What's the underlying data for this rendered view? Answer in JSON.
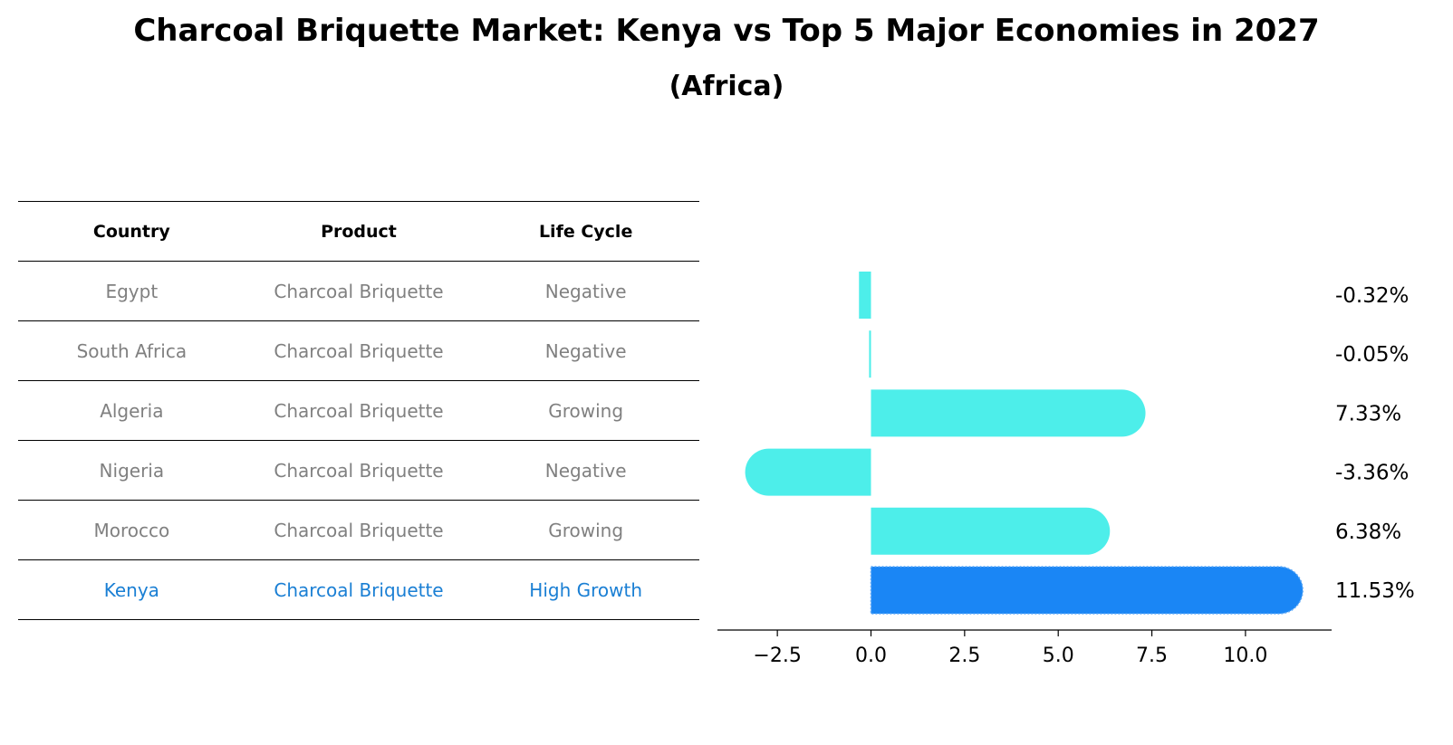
{
  "title": "Charcoal Briquette Market: Kenya vs Top 5 Major Economies in 2027",
  "subtitle": "(Africa)",
  "table": {
    "headers": [
      "Country",
      "Product",
      "Life Cycle"
    ],
    "rows": [
      [
        "Egypt",
        "Charcoal Briquette",
        "Negative"
      ],
      [
        "South Africa",
        "Charcoal Briquette",
        "Negative"
      ],
      [
        "Algeria",
        "Charcoal Briquette",
        "Growing"
      ],
      [
        "Nigeria",
        "Charcoal Briquette",
        "Negative"
      ],
      [
        "Morocco",
        "Charcoal Briquette",
        "Growing"
      ],
      [
        "Kenya",
        "Charcoal Briquette",
        "High Growth"
      ]
    ]
  },
  "chart_data": {
    "type": "bar",
    "orientation": "horizontal",
    "categories": [
      "Egypt",
      "South Africa",
      "Algeria",
      "Nigeria",
      "Morocco",
      "Kenya"
    ],
    "values": [
      -0.32,
      -0.05,
      7.33,
      -3.36,
      6.38,
      11.53
    ],
    "labels": [
      "-0.32%",
      "-0.05%",
      "7.33%",
      "-3.36%",
      "6.38%",
      "11.53%"
    ],
    "highlight": "Kenya",
    "xlim": [
      -4.1,
      12.3
    ],
    "xticks": [
      -2.5,
      0.0,
      2.5,
      5.0,
      7.5,
      10.0
    ],
    "xtick_labels": [
      "−2.5",
      "0.0",
      "2.5",
      "5.0",
      "7.5",
      "10.0"
    ],
    "colors": {
      "default": "#4deeea",
      "highlight": "#1a86f5"
    }
  }
}
